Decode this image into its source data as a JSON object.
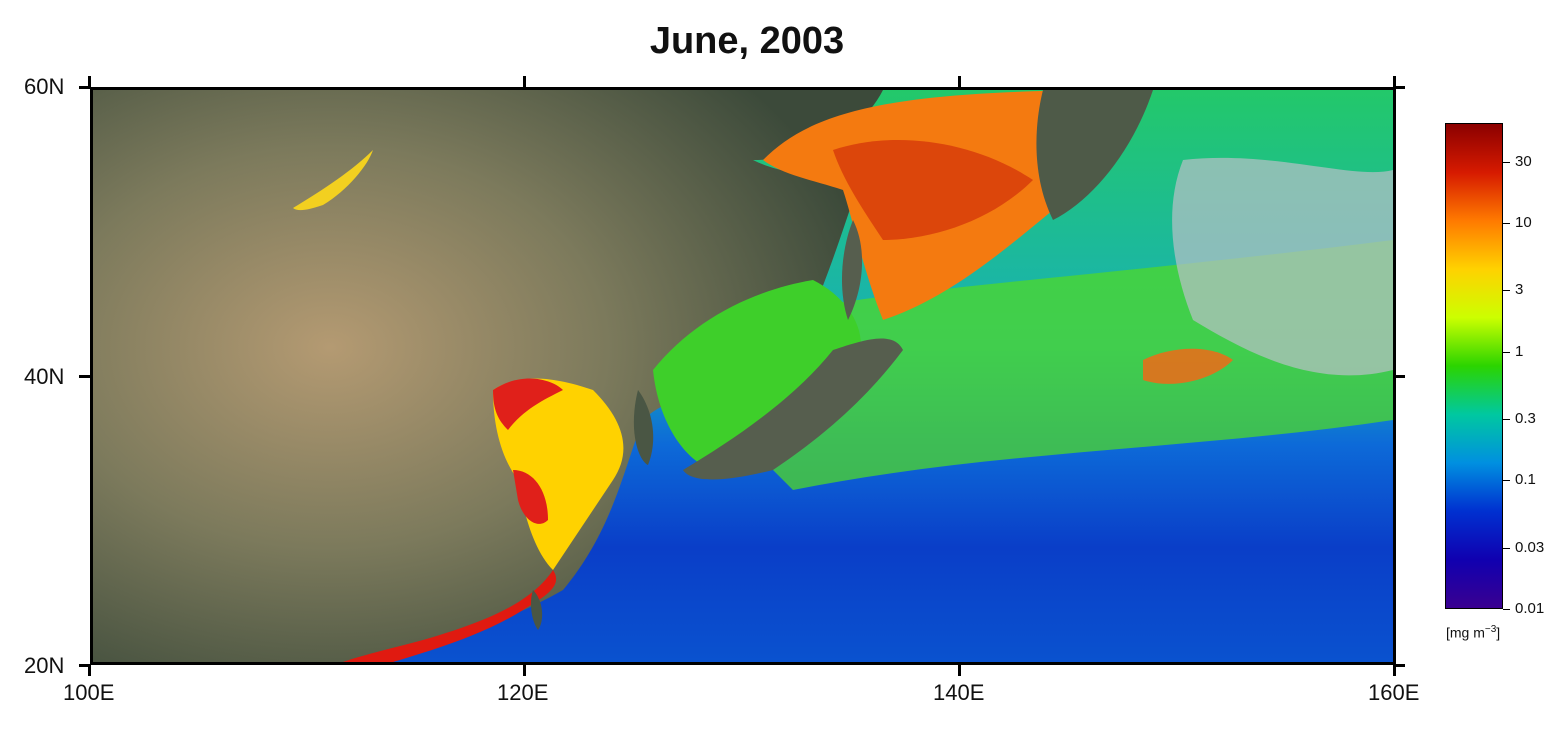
{
  "title": "June, 2003",
  "map": {
    "lon_range": [
      100,
      160
    ],
    "lat_range": [
      20,
      60
    ],
    "x_ticks": [
      "100E",
      "120E",
      "140E",
      "160E"
    ],
    "y_ticks": [
      "60N",
      "40N",
      "20N"
    ]
  },
  "colorbar": {
    "ticks": [
      "30",
      "10",
      "3",
      "1",
      "0.3",
      "0.1",
      "0.03",
      "0.01"
    ],
    "units_base": "[mg m",
    "units_exp": "−3",
    "units_close": "]",
    "colors": [
      "#8b0000",
      "#d61a00",
      "#ff7a00",
      "#ffd200",
      "#ccff00",
      "#2bd400",
      "#00c8a0",
      "#0090e0",
      "#0030d0",
      "#1000b0",
      "#3a0090"
    ]
  }
}
